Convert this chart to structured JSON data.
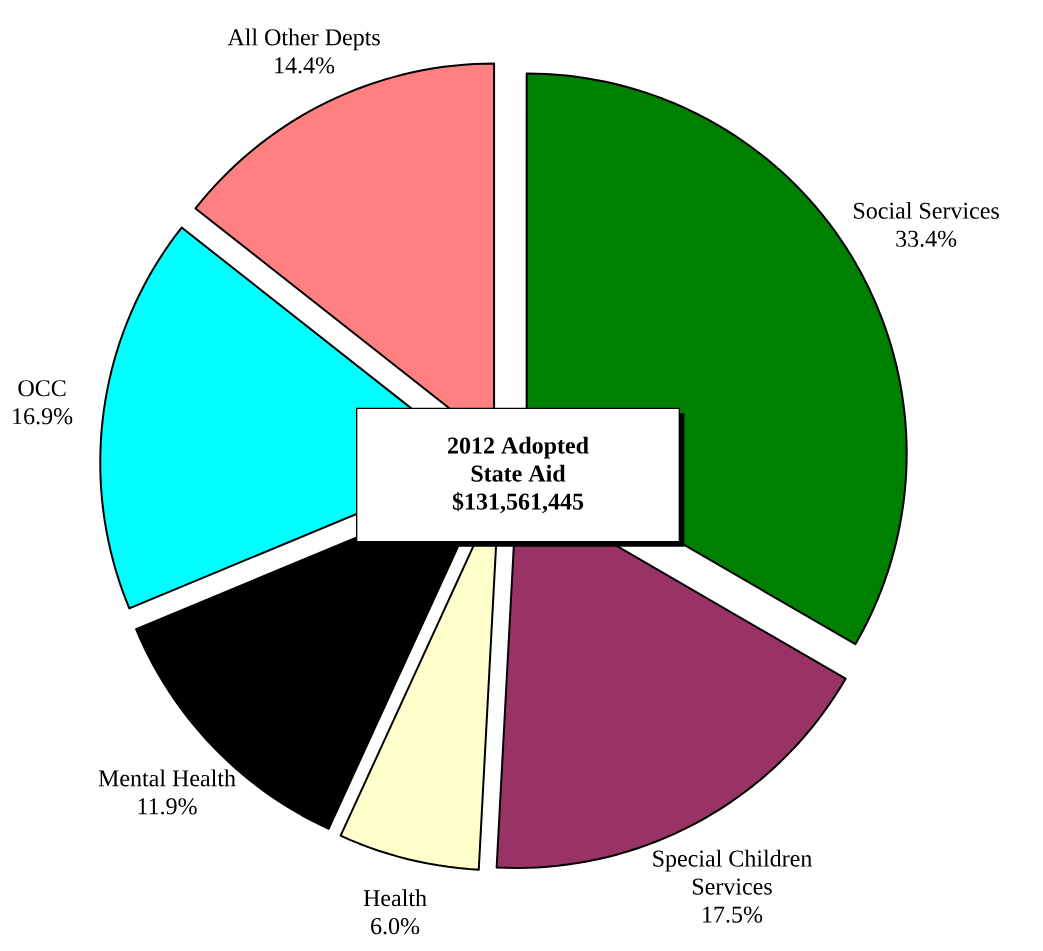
{
  "chart_data": {
    "type": "pie",
    "title": "2012 Adopted State Aid",
    "subtitle": "$131,561,445",
    "categories": [
      "Social Services",
      "Special Children Services",
      "Health",
      "Mental Health",
      "OCC",
      "All Other Depts"
    ],
    "values": [
      33.4,
      17.5,
      6.0,
      11.9,
      16.9,
      14.4
    ],
    "value_labels": [
      "33.4%",
      "17.5%",
      "6.0%",
      "11.9%",
      "16.9%",
      "14.4%"
    ],
    "colors": [
      "#008000",
      "#993366",
      "#ffffcc",
      "#000000",
      "#00ffff",
      "#ff8080"
    ]
  }
}
